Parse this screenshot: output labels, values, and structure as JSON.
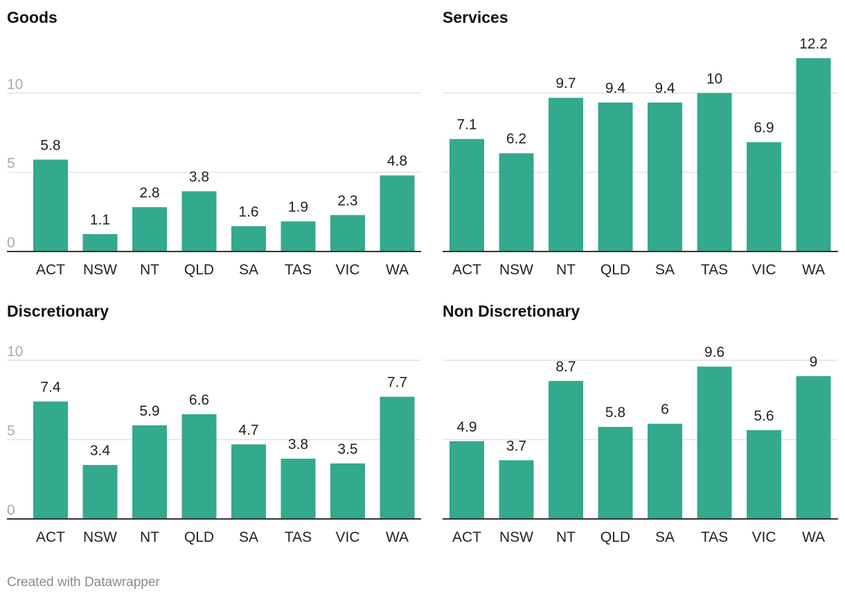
{
  "footer": "Created with Datawrapper",
  "colors": {
    "bar": "#33a98e",
    "grid": "#e2e2e2",
    "axis": "#333333",
    "tick": "#aaaaaa",
    "label": "#222222"
  },
  "chart_data": [
    {
      "type": "bar",
      "title": "Goods",
      "categories": [
        "ACT",
        "NSW",
        "NT",
        "QLD",
        "SA",
        "TAS",
        "VIC",
        "WA"
      ],
      "values": [
        5.8,
        1.1,
        2.8,
        3.8,
        1.6,
        1.9,
        2.3,
        4.8
      ],
      "labels": [
        "5.8",
        "1.1",
        "2.8",
        "3.8",
        "1.6",
        "1.9",
        "2.3",
        "4.8"
      ],
      "yticks": [
        0,
        5,
        10
      ],
      "ytick_labels": [
        "0",
        "5",
        "10"
      ],
      "ylim": [
        0,
        12.2
      ],
      "xlabel": "",
      "ylabel": ""
    },
    {
      "type": "bar",
      "title": "Services",
      "categories": [
        "ACT",
        "NSW",
        "NT",
        "QLD",
        "SA",
        "TAS",
        "VIC",
        "WA"
      ],
      "values": [
        7.1,
        6.2,
        9.7,
        9.4,
        9.4,
        10,
        6.9,
        12.2
      ],
      "labels": [
        "7.1",
        "6.2",
        "9.7",
        "9.4",
        "9.4",
        "10",
        "6.9",
        "12.2"
      ],
      "yticks": [
        0,
        5,
        10
      ],
      "ytick_labels": [],
      "ylim": [
        0,
        12.2
      ],
      "xlabel": "",
      "ylabel": ""
    },
    {
      "type": "bar",
      "title": "Discretionary",
      "categories": [
        "ACT",
        "NSW",
        "NT",
        "QLD",
        "SA",
        "TAS",
        "VIC",
        "WA"
      ],
      "values": [
        7.4,
        3.4,
        5.9,
        6.6,
        4.7,
        3.8,
        3.5,
        7.7
      ],
      "labels": [
        "7.4",
        "3.4",
        "5.9",
        "6.6",
        "4.7",
        "3.8",
        "3.5",
        "7.7"
      ],
      "yticks": [
        0,
        5,
        10
      ],
      "ytick_labels": [
        "0",
        "5",
        "10"
      ],
      "ylim": [
        0,
        10
      ],
      "xlabel": "",
      "ylabel": ""
    },
    {
      "type": "bar",
      "title": "Non Discretionary",
      "categories": [
        "ACT",
        "NSW",
        "NT",
        "QLD",
        "SA",
        "TAS",
        "VIC",
        "WA"
      ],
      "values": [
        4.9,
        3.7,
        8.7,
        5.8,
        6,
        9.6,
        5.6,
        9
      ],
      "labels": [
        "4.9",
        "3.7",
        "8.7",
        "5.8",
        "6",
        "9.6",
        "5.6",
        "9"
      ],
      "yticks": [
        0,
        5,
        10
      ],
      "ytick_labels": [],
      "ylim": [
        0,
        10
      ],
      "xlabel": "",
      "ylabel": ""
    }
  ]
}
